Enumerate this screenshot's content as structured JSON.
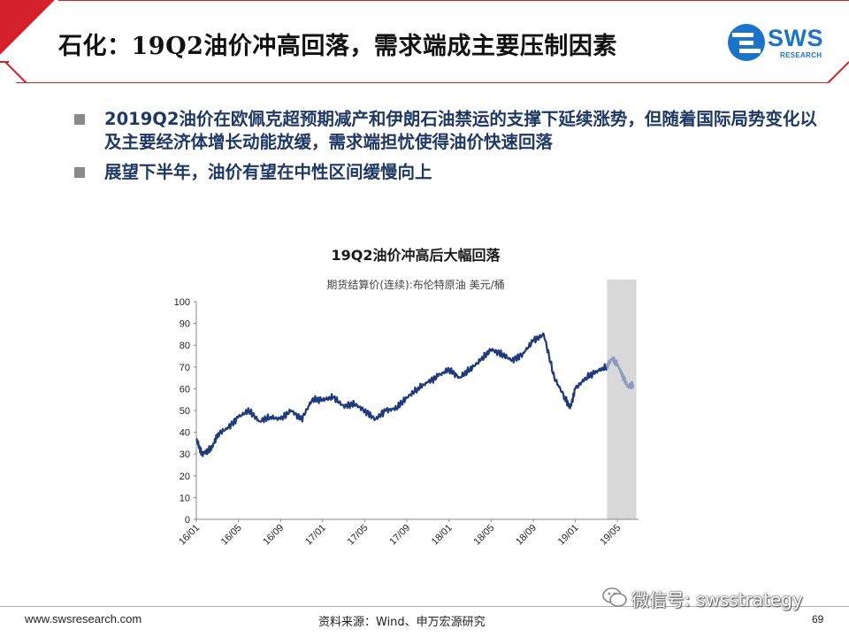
{
  "slide": {
    "title": "石化：19Q2油价冲高回落，需求端成主要压制因素",
    "logo_text": "SWS",
    "logo_subtext": "RESEARCH",
    "bullets": [
      "2019Q2油价在欧佩克超预期减产和伊朗石油禁运的支撑下延续涨势，但随着国际局势变化以及主要经济体增长动能放缓，需求端担忧使得油价快速回落",
      "展望下半年，油价有望在中性区间缓慢向上"
    ],
    "footer_url": "www.swsresearch.com",
    "footer_source": "资料来源：Wind、申万宏源研究",
    "page_number": "69",
    "watermark": "微信号: swsstrategy"
  },
  "colors": {
    "accent_red": "#d3222a",
    "line": "#1f3a7a",
    "line_highlight": "#8c9bbd",
    "highlight_band": "#d8d8d8",
    "bullet_text": "#1f3864"
  },
  "chart_data": {
    "type": "line",
    "title": "19Q2油价冲高后大幅回落",
    "subtitle": "期货结算价(连续):布伦特原油 美元/桶",
    "ylim": [
      0,
      100
    ],
    "yticks": [
      "0",
      "10",
      "20",
      "30",
      "40",
      "50",
      "60",
      "70",
      "80",
      "90",
      "100"
    ],
    "xticks": [
      "16/01",
      "16/05",
      "16/09",
      "17/01",
      "17/05",
      "17/09",
      "18/01",
      "18/05",
      "18/09",
      "19/01",
      "19/05"
    ],
    "highlight_range": [
      "19/04",
      "19/06"
    ],
    "grid": false,
    "series": [
      {
        "points": [
          [
            "16/01",
            37
          ],
          [
            "16/01",
            30
          ],
          [
            "16/02",
            31
          ],
          [
            "16/02",
            33
          ],
          [
            "16/03",
            39
          ],
          [
            "16/04",
            42
          ],
          [
            "16/05",
            47
          ],
          [
            "16/06",
            50
          ],
          [
            "16/07",
            45
          ],
          [
            "16/08",
            47
          ],
          [
            "16/09",
            46
          ],
          [
            "16/10",
            50
          ],
          [
            "16/11",
            46
          ],
          [
            "16/12",
            55
          ],
          [
            "17/01",
            55
          ],
          [
            "17/02",
            56
          ],
          [
            "17/03",
            52
          ],
          [
            "17/04",
            53
          ],
          [
            "17/05",
            50
          ],
          [
            "17/06",
            46
          ],
          [
            "17/07",
            50
          ],
          [
            "17/08",
            51
          ],
          [
            "17/09",
            56
          ],
          [
            "17/10",
            60
          ],
          [
            "17/11",
            63
          ],
          [
            "17/12",
            66
          ],
          [
            "18/01",
            69
          ],
          [
            "18/02",
            65
          ],
          [
            "18/03",
            69
          ],
          [
            "18/04",
            73
          ],
          [
            "18/05",
            78
          ],
          [
            "18/06",
            76
          ],
          [
            "18/07",
            73
          ],
          [
            "18/08",
            76
          ],
          [
            "18/09",
            82
          ],
          [
            "18/10",
            85
          ],
          [
            "18/11",
            65
          ],
          [
            "18/12",
            56
          ],
          [
            "18/12",
            51
          ],
          [
            "19/01",
            60
          ],
          [
            "19/02",
            65
          ],
          [
            "19/03",
            68
          ],
          [
            "19/04",
            70
          ],
          [
            "19/04",
            74
          ],
          [
            "19/05",
            71
          ],
          [
            "19/05",
            66
          ],
          [
            "19/06",
            61
          ],
          [
            "19/06",
            62
          ]
        ]
      }
    ]
  }
}
